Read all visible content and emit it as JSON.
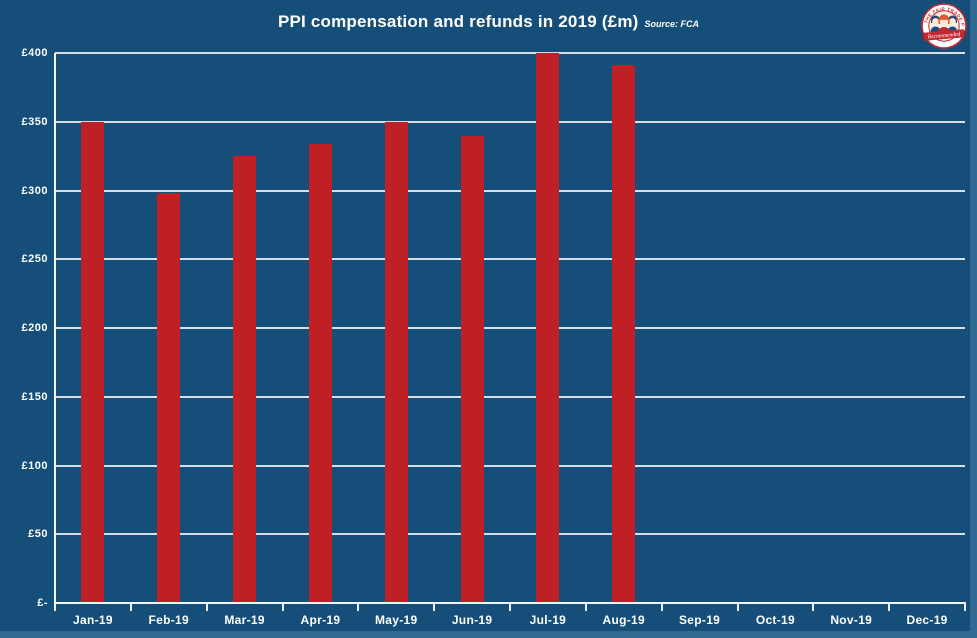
{
  "header": {
    "title": "PPI compensation and refunds in 2019 (£m)",
    "source": "Source: FCA"
  },
  "logo": {
    "arc_text": "THE FAIR TRADE PRACTICE",
    "banner_text": "Recommended"
  },
  "colors": {
    "background": "#154e78",
    "bar": "#bf2026",
    "gridline": "#e8ecef",
    "axis": "#f2f4f6",
    "text": "#ffffff",
    "edge_strip": "#306a92",
    "logo_red": "#c22a33",
    "logo_blue": "#1d4e79"
  },
  "chart_data": {
    "type": "bar",
    "title": "PPI compensation and refunds in 2019 (£m)",
    "source": "Source: FCA",
    "categories": [
      "Jan-19",
      "Feb-19",
      "Mar-19",
      "Apr-19",
      "May-19",
      "Jun-19",
      "Jul-19",
      "Aug-19",
      "Sep-19",
      "Oct-19",
      "Nov-19",
      "Dec-19"
    ],
    "values": [
      350,
      298,
      325,
      334,
      350,
      340,
      400,
      391,
      null,
      null,
      null,
      null
    ],
    "xlabel": "",
    "ylabel": "",
    "ylim": [
      0,
      400
    ],
    "ytick_step": 50,
    "ytick_labels": [
      "£-",
      "£50",
      "£100",
      "£150",
      "£200",
      "£250",
      "£300",
      "£350",
      "£400"
    ],
    "grid": true,
    "legend": false
  }
}
